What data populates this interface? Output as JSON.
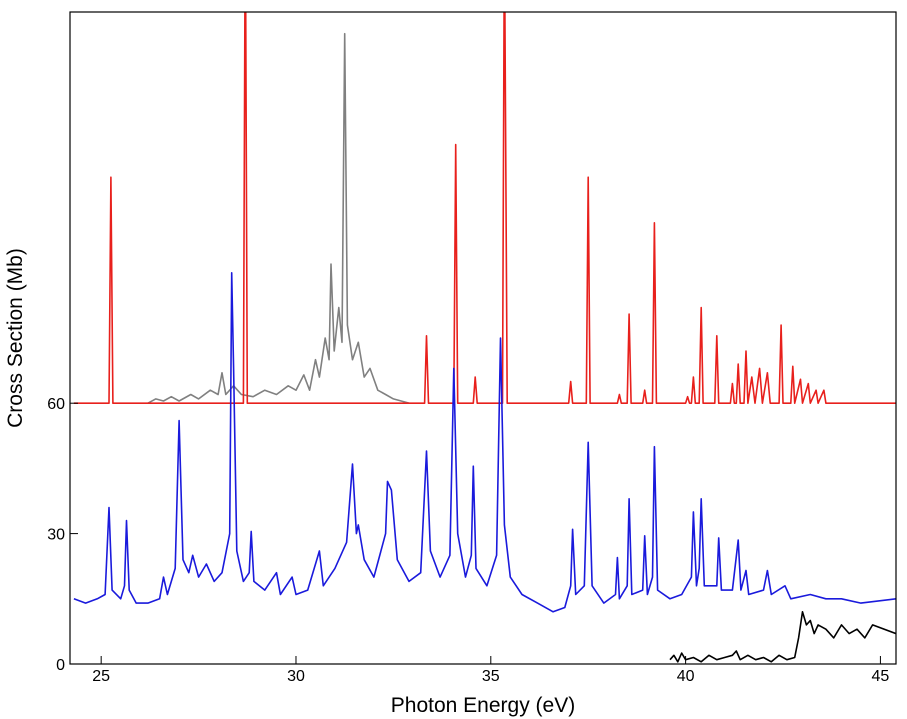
{
  "chart_data": {
    "type": "line",
    "xlabel": "Photon Energy (eV)",
    "ylabel": "Cross Section (Mb)",
    "xlim": [
      24.2,
      45.4
    ],
    "xticks": [
      25,
      30,
      35,
      40,
      45
    ],
    "ylim": [
      0,
      150
    ],
    "yticks": [
      0,
      30,
      60
    ],
    "series": [
      {
        "color": "#808080",
        "x": [
          26.2,
          26.4,
          26.6,
          26.8,
          27.0,
          27.3,
          27.5,
          27.8,
          28.0,
          28.1,
          28.2,
          28.4,
          28.6,
          28.9,
          29.2,
          29.5,
          29.8,
          30.0,
          30.2,
          30.35,
          30.5,
          30.6,
          30.75,
          30.85,
          30.9,
          30.98,
          31.1,
          31.18,
          31.25,
          31.32,
          31.45,
          31.6,
          31.75,
          31.9,
          32.1,
          32.3,
          32.5,
          32.7,
          32.9
        ],
        "values": [
          60,
          61,
          60.5,
          61.5,
          60.5,
          62,
          61,
          63,
          62,
          67,
          62,
          64,
          62,
          61.5,
          63,
          62,
          64,
          63,
          66.5,
          63,
          70,
          66,
          75,
          70,
          92,
          72,
          82,
          74,
          145,
          78,
          70,
          74,
          66,
          68,
          63,
          62,
          61,
          60.5,
          60
        ]
      },
      {
        "color": "#e8201c",
        "x": [
          24.3,
          25.2,
          25.25,
          25.3,
          28.65,
          28.7,
          28.75,
          33.3,
          33.35,
          33.4,
          34.05,
          34.1,
          34.15,
          34.55,
          34.6,
          34.65,
          35.3,
          35.35,
          35.42,
          37.0,
          37.05,
          37.1,
          37.45,
          37.5,
          37.55,
          38.25,
          38.3,
          38.35,
          38.5,
          38.55,
          38.6,
          38.9,
          38.95,
          39.0,
          39.15,
          39.2,
          39.25,
          40.0,
          40.05,
          40.1,
          40.15,
          40.2,
          40.25,
          40.35,
          40.4,
          40.45,
          40.75,
          40.8,
          40.85,
          41.15,
          41.2,
          41.25,
          41.3,
          41.35,
          41.4,
          41.5,
          41.55,
          41.6,
          41.7,
          41.78,
          41.9,
          41.97,
          42.1,
          42.17,
          42.4,
          42.45,
          42.5,
          42.7,
          42.75,
          42.8,
          42.95,
          43.0,
          43.15,
          43.2,
          43.35,
          43.4,
          43.55,
          43.6,
          45.4
        ],
        "values": [
          60,
          60,
          112,
          60,
          60,
          175,
          60,
          60,
          75.5,
          60,
          60,
          119.5,
          60,
          60,
          66,
          60,
          60,
          170,
          60,
          60,
          65,
          60,
          60,
          112,
          60,
          60,
          62,
          60,
          60,
          80.5,
          60,
          60,
          63,
          60,
          60,
          101.5,
          60,
          60,
          61.5,
          60,
          60,
          66,
          60,
          60,
          82,
          60,
          60,
          75.5,
          60,
          60,
          64.5,
          60,
          60,
          69,
          60,
          60,
          72,
          60,
          66,
          60,
          68,
          60,
          67,
          60,
          60,
          78,
          60,
          60,
          68.5,
          60,
          65.5,
          60,
          64.5,
          60,
          63,
          60,
          63,
          60,
          60
        ]
      },
      {
        "color": "#1a1adc",
        "x": [
          24.3,
          24.6,
          24.9,
          25.1,
          25.2,
          25.28,
          25.5,
          25.6,
          25.65,
          25.72,
          25.9,
          26.2,
          26.5,
          26.6,
          26.7,
          26.9,
          27.0,
          27.1,
          27.25,
          27.35,
          27.5,
          27.7,
          27.9,
          28.1,
          28.3,
          28.35,
          28.4,
          28.48,
          28.65,
          28.8,
          28.85,
          28.92,
          29.2,
          29.5,
          29.6,
          29.9,
          30.0,
          30.3,
          30.6,
          30.7,
          31.0,
          31.3,
          31.45,
          31.55,
          31.6,
          31.75,
          32.0,
          32.3,
          32.35,
          32.45,
          32.6,
          32.9,
          33.2,
          33.35,
          33.45,
          33.7,
          33.95,
          34.05,
          34.15,
          34.35,
          34.5,
          34.55,
          34.62,
          34.9,
          35.15,
          35.25,
          35.35,
          35.5,
          35.8,
          36.2,
          36.6,
          36.9,
          37.05,
          37.1,
          37.18,
          37.4,
          37.5,
          37.6,
          37.9,
          38.2,
          38.25,
          38.3,
          38.5,
          38.55,
          38.62,
          38.9,
          38.95,
          39.02,
          39.15,
          39.2,
          39.28,
          39.6,
          39.9,
          40.15,
          40.2,
          40.28,
          40.35,
          40.4,
          40.48,
          40.8,
          40.85,
          40.92,
          41.2,
          41.35,
          41.42,
          41.55,
          41.62,
          42.0,
          42.1,
          42.2,
          42.55,
          42.7,
          43.2,
          43.6,
          44.0,
          44.5,
          45.4
        ],
        "values": [
          15,
          14,
          15,
          16,
          36,
          17,
          15,
          18,
          33,
          17,
          14,
          14,
          15,
          20,
          16,
          22,
          56,
          24,
          21,
          25,
          20,
          23,
          19,
          21,
          30,
          90,
          68,
          26,
          19,
          21,
          30.5,
          19,
          17,
          21,
          16,
          20,
          16,
          17,
          26,
          18,
          22,
          28,
          46,
          30,
          32,
          24,
          20,
          30,
          42,
          40,
          24,
          19,
          21,
          49,
          26,
          20,
          25,
          68,
          30,
          20,
          25,
          45.5,
          22,
          18,
          25,
          75,
          32,
          20,
          16,
          14,
          12,
          13,
          18,
          31,
          16,
          18,
          51,
          18,
          14,
          16,
          24.5,
          15,
          18,
          38,
          16,
          17,
          29.5,
          16,
          20,
          50,
          17,
          15,
          16,
          20,
          35,
          18,
          22,
          38,
          18,
          18,
          29,
          17,
          17,
          28.5,
          17,
          21.5,
          16,
          17,
          21.5,
          16,
          18,
          15,
          16,
          15,
          15,
          14,
          15
        ]
      },
      {
        "color": "#000000",
        "x": [
          39.6,
          39.7,
          39.8,
          39.9,
          40.0,
          40.2,
          40.4,
          40.6,
          40.8,
          41.0,
          41.2,
          41.3,
          41.4,
          41.6,
          41.8,
          42.0,
          42.2,
          42.4,
          42.6,
          42.8,
          42.9,
          43.0,
          43.1,
          43.2,
          43.3,
          43.4,
          43.6,
          43.8,
          44.0,
          44.2,
          44.4,
          44.6,
          44.8,
          45.4
        ],
        "values": [
          1,
          2,
          0.5,
          2.5,
          1,
          1.5,
          0.5,
          2,
          1,
          1.5,
          2,
          3,
          1,
          2,
          1,
          1.5,
          0.5,
          2,
          1,
          1.5,
          6,
          12,
          9,
          10,
          7,
          9,
          8,
          6,
          9,
          7,
          8,
          6,
          9,
          7
        ]
      }
    ]
  }
}
